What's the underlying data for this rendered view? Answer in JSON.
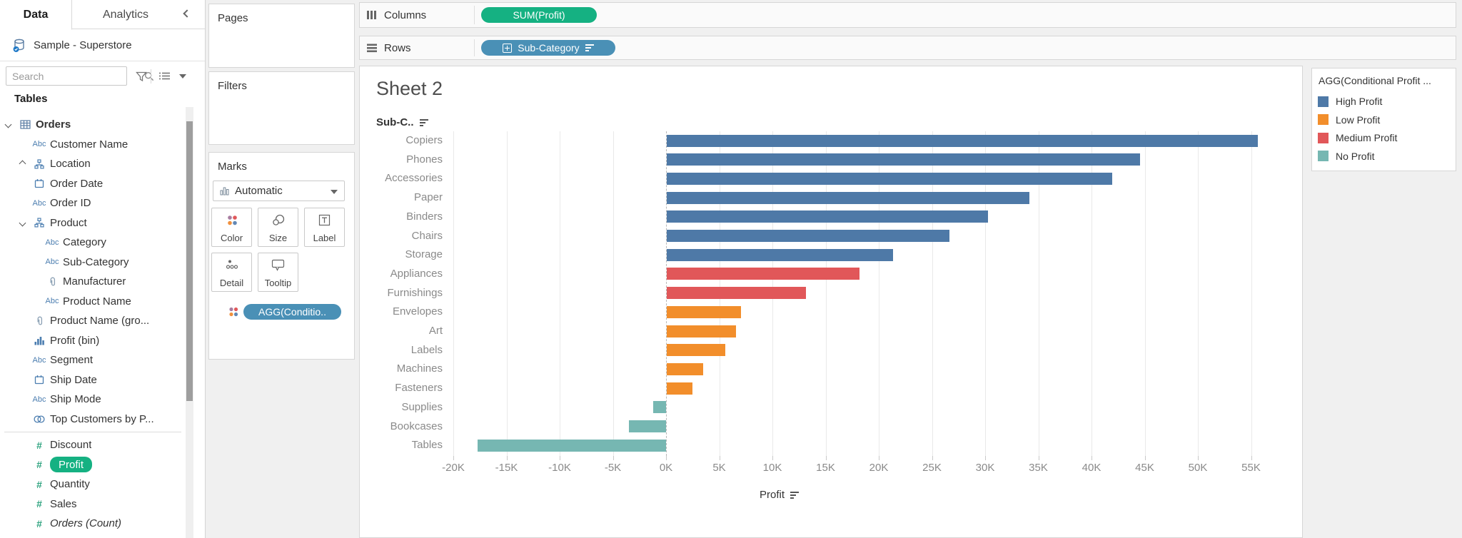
{
  "data_pane": {
    "tabs": [
      {
        "label": "Data",
        "active": true
      },
      {
        "label": "Analytics",
        "active": false
      }
    ],
    "datasource_name": "Sample - Superstore",
    "search": {
      "placeholder": "Search"
    },
    "tables_header": "Tables",
    "fields": [
      {
        "label": "Orders",
        "icon": "table",
        "caret": "down",
        "indent": 0,
        "bold": true
      },
      {
        "label": "Customer Name",
        "icon": "abc",
        "indent": 1
      },
      {
        "label": "Location",
        "icon": "hierarchy",
        "caret": "right",
        "indent": 1
      },
      {
        "label": "Order Date",
        "icon": "calendar",
        "indent": 1
      },
      {
        "label": "Order ID",
        "icon": "abc",
        "indent": 1
      },
      {
        "label": "Product",
        "icon": "hierarchy",
        "caret": "down",
        "indent": 1
      },
      {
        "label": "Category",
        "icon": "abc",
        "indent": 2
      },
      {
        "label": "Sub-Category",
        "icon": "abc",
        "indent": 2
      },
      {
        "label": "Manufacturer",
        "icon": "paperclip",
        "indent": 2
      },
      {
        "label": "Product Name",
        "icon": "abc",
        "indent": 2
      },
      {
        "label": "Product Name (gro...",
        "icon": "paperclip",
        "indent": 1
      },
      {
        "label": "Profit (bin)",
        "icon": "histogram",
        "indent": 1
      },
      {
        "label": "Segment",
        "icon": "abc",
        "indent": 1
      },
      {
        "label": "Ship Date",
        "icon": "calendar",
        "indent": 1
      },
      {
        "label": "Ship Mode",
        "icon": "abc",
        "indent": 1
      },
      {
        "label": "Top Customers by P...",
        "icon": "sets",
        "indent": 1
      },
      {
        "separator": true
      },
      {
        "label": "Discount",
        "icon": "hash",
        "indent": 1
      },
      {
        "label": "Profit",
        "icon": "hash",
        "indent": 1,
        "selected": true
      },
      {
        "label": "Quantity",
        "icon": "hash",
        "indent": 1
      },
      {
        "label": "Sales",
        "icon": "hash",
        "indent": 1
      },
      {
        "label": "Orders (Count)",
        "icon": "hash",
        "indent": 1,
        "italic": true
      }
    ]
  },
  "cards": {
    "pages_label": "Pages",
    "filters_label": "Filters",
    "marks": {
      "label": "Marks",
      "mark_type": "Automatic",
      "buttons": [
        {
          "label": "Color",
          "icon": "color-dots"
        },
        {
          "label": "Size",
          "icon": "size-circles"
        },
        {
          "label": "Label",
          "icon": "label-t"
        },
        {
          "label": "Detail",
          "icon": "detail-dots"
        },
        {
          "label": "Tooltip",
          "icon": "tooltip-bubble"
        }
      ],
      "encoding_pill": "AGG(Conditio.."
    }
  },
  "shelves": {
    "columns": {
      "label": "Columns",
      "pill": "SUM(Profit)"
    },
    "rows": {
      "label": "Rows",
      "pill": "Sub-Category"
    }
  },
  "sheet": {
    "title": "Sheet 2",
    "row_field_header": "Sub-C..",
    "axis_title": "Profit"
  },
  "legend": {
    "title": "AGG(Conditional Profit ...",
    "items": [
      {
        "label": "High Profit",
        "color": "#4E79A7"
      },
      {
        "label": "Low Profit",
        "color": "#F28E2B"
      },
      {
        "label": "Medium Profit",
        "color": "#E15759"
      },
      {
        "label": "No Profit",
        "color": "#76B7B2"
      }
    ]
  },
  "chart_data": {
    "type": "bar",
    "orientation": "horizontal",
    "title": "Sheet 2",
    "xlabel": "Profit",
    "ylabel": "Sub-Category",
    "categories": [
      "Copiers",
      "Phones",
      "Accessories",
      "Paper",
      "Binders",
      "Chairs",
      "Storage",
      "Appliances",
      "Furnishings",
      "Envelopes",
      "Art",
      "Labels",
      "Machines",
      "Fasteners",
      "Supplies",
      "Bookcases",
      "Tables"
    ],
    "values": [
      55600,
      44500,
      41900,
      34100,
      30200,
      26600,
      21300,
      18100,
      13100,
      7000,
      6500,
      5500,
      3400,
      2400,
      -1200,
      -3500,
      -17700
    ],
    "segments": [
      "High Profit",
      "High Profit",
      "High Profit",
      "High Profit",
      "High Profit",
      "High Profit",
      "High Profit",
      "Medium Profit",
      "Medium Profit",
      "Low Profit",
      "Low Profit",
      "Low Profit",
      "Low Profit",
      "Low Profit",
      "No Profit",
      "No Profit",
      "No Profit"
    ],
    "x_ticks": [
      -20000,
      -15000,
      -10000,
      -5000,
      0,
      5000,
      10000,
      15000,
      20000,
      25000,
      30000,
      35000,
      40000,
      45000,
      50000,
      55000
    ],
    "x_tick_labels": [
      "-20K",
      "-15K",
      "-10K",
      "-5K",
      "0K",
      "5K",
      "10K",
      "15K",
      "20K",
      "25K",
      "30K",
      "35K",
      "40K",
      "45K",
      "50K",
      "55K"
    ],
    "xlim": [
      -22000,
      60000
    ],
    "grid": "vertical",
    "legend_position": "right",
    "sort": "descending by Profit"
  }
}
